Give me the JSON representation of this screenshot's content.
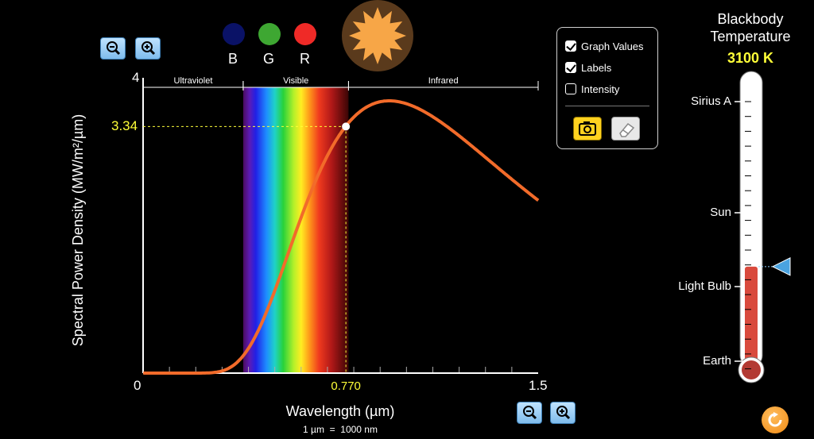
{
  "bands": {
    "blue_label": "B",
    "green_label": "G",
    "red_label": "R",
    "blue_color": "#0a1266",
    "green_color": "#3ea732",
    "red_color": "#ef2a27"
  },
  "star_icon": "star-icon",
  "controls": {
    "graph_values": {
      "label": "Graph Values",
      "checked": true
    },
    "labels": {
      "label": "Labels",
      "checked": true
    },
    "intensity": {
      "label": "Intensity",
      "checked": false
    },
    "camera_icon": "camera-icon",
    "eraser_icon": "eraser-icon"
  },
  "thermometer": {
    "title": "Blackbody Temperature",
    "temperature": "3100 K",
    "markers": [
      "Sirius A",
      "Sun",
      "Light Bulb",
      "Earth"
    ],
    "fill_fraction": 0.33,
    "fill_color": "#d94a3d"
  },
  "chart_data": {
    "type": "line",
    "xlabel": "Wavelength (µm)",
    "unit_note": "1 µm  =  1000 nm",
    "ylabel": "Spectral Power Density (MW/m²/µm)",
    "xlim": [
      0,
      1.5
    ],
    "ylim": [
      0,
      4
    ],
    "x_tick_labels": [
      "0",
      "1.5"
    ],
    "y_tick_labels": [
      "0",
      "4"
    ],
    "regions": [
      {
        "name": "Ultraviolet",
        "from": 0,
        "to": 0.38
      },
      {
        "name": "Visible",
        "from": 0.38,
        "to": 0.78
      },
      {
        "name": "Infrared",
        "from": 0.78,
        "to": 1.5
      }
    ],
    "series": [
      {
        "color": "#f26b2a",
        "temperature_K": 3100
      }
    ],
    "marker": {
      "x": 0.77,
      "y": 3.34,
      "x_label": "0.770",
      "y_label": "3.34"
    }
  },
  "ui": {
    "zoom_in_icon": "zoom-in-icon",
    "zoom_out_icon": "zoom-out-icon",
    "reset_icon": "reset-icon",
    "accent_yellow": "#ffff38",
    "curve_color": "#f26b2a"
  }
}
